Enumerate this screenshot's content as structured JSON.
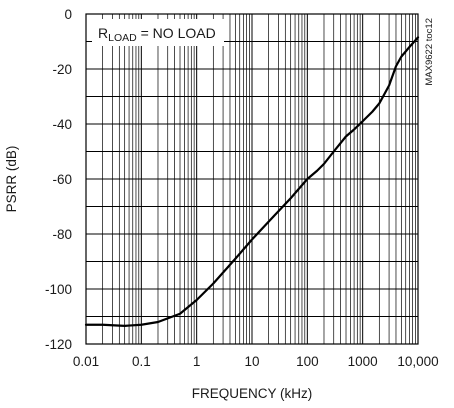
{
  "chart_data": {
    "type": "line",
    "title": "",
    "xlabel": "FREQUENCY (kHz)",
    "ylabel": "PSRR (dB)",
    "x_scale": "log",
    "xlim": [
      0.01,
      10000
    ],
    "ylim": [
      -120,
      0
    ],
    "grid": true,
    "x_tick_values": [
      0.01,
      0.1,
      1,
      10,
      100,
      1000,
      10000
    ],
    "x_tick_labels": [
      "0.01",
      "0.1",
      "1",
      "10",
      "100",
      "1000",
      "10,000"
    ],
    "y_tick_values": [
      0,
      -20,
      -40,
      -60,
      -80,
      -100,
      -120
    ],
    "y_tick_labels": [
      "0",
      "-20",
      "-40",
      "-60",
      "-80",
      "-100",
      "-120"
    ],
    "annotation": {
      "prefix": "R",
      "subscript": "LOAD",
      "suffix": " = NO LOAD"
    },
    "side_label": "MAX9622 toc12",
    "series": [
      {
        "x": [
          0.01,
          0.02,
          0.05,
          0.1,
          0.2,
          0.5,
          1,
          2,
          5,
          10,
          20,
          50,
          100,
          150,
          200,
          300,
          500,
          700,
          1000,
          1500,
          2000,
          3000,
          4000,
          5000,
          7000,
          10000
        ],
        "y": [
          -113,
          -113,
          -113.4,
          -113,
          -112,
          -109,
          -104,
          -98,
          -89,
          -82,
          -75.5,
          -67,
          -60,
          -57,
          -54.5,
          -50,
          -44.5,
          -42,
          -39,
          -35.5,
          -32.5,
          -26,
          -19,
          -15.5,
          -12,
          -8.5
        ],
        "color": "#000000"
      }
    ]
  }
}
